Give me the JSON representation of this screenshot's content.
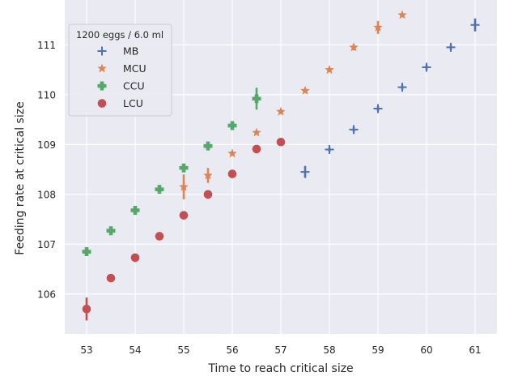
{
  "chart_data": {
    "type": "scatter",
    "title": "",
    "xlabel": "Time to reach critical size",
    "ylabel": "Feeding rate at critical size",
    "xlim": [
      52.55,
      61.45
    ],
    "ylim": [
      105.2,
      111.9
    ],
    "xticks": [
      53,
      54,
      55,
      56,
      57,
      58,
      59,
      60,
      61
    ],
    "yticks": [
      106,
      107,
      108,
      109,
      110,
      111
    ],
    "grid": true,
    "legend_title": "1200 eggs / 6.0 ml",
    "legend_position": "top-left",
    "series": [
      {
        "name": "MB",
        "marker": "plus",
        "color": "#4c72b0",
        "points": [
          {
            "x": 57.5,
            "y": 108.45,
            "err": 0.12
          },
          {
            "x": 58.0,
            "y": 108.9,
            "err": 0.05
          },
          {
            "x": 58.5,
            "y": 109.3,
            "err": 0.05
          },
          {
            "x": 59.0,
            "y": 109.72,
            "err": 0.05
          },
          {
            "x": 59.5,
            "y": 110.15,
            "err": 0.05
          },
          {
            "x": 60.0,
            "y": 110.55,
            "err": 0.05
          },
          {
            "x": 60.5,
            "y": 110.95,
            "err": 0.05
          },
          {
            "x": 61.0,
            "y": 111.4,
            "err": 0.13
          }
        ]
      },
      {
        "name": "MCU",
        "marker": "star",
        "color": "#dd8452",
        "points": [
          {
            "x": 55.0,
            "y": 108.15,
            "err": 0.25
          },
          {
            "x": 55.5,
            "y": 108.38,
            "err": 0.15
          },
          {
            "x": 56.0,
            "y": 108.82,
            "err": 0.04
          },
          {
            "x": 56.5,
            "y": 109.24,
            "err": 0.04
          },
          {
            "x": 57.0,
            "y": 109.66,
            "err": 0.04
          },
          {
            "x": 57.5,
            "y": 110.08,
            "err": 0.04
          },
          {
            "x": 58.0,
            "y": 110.5,
            "err": 0.04
          },
          {
            "x": 58.5,
            "y": 110.95,
            "err": 0.06
          },
          {
            "x": 59.0,
            "y": 111.35,
            "err": 0.13
          },
          {
            "x": 59.5,
            "y": 111.6,
            "err": 0.04
          }
        ]
      },
      {
        "name": "CCU",
        "marker": "plus-thick",
        "color": "#55a868",
        "points": [
          {
            "x": 53.0,
            "y": 106.85,
            "err": 0.05
          },
          {
            "x": 53.5,
            "y": 107.27,
            "err": 0.04
          },
          {
            "x": 54.0,
            "y": 107.68,
            "err": 0.04
          },
          {
            "x": 54.5,
            "y": 108.1,
            "err": 0.04
          },
          {
            "x": 55.0,
            "y": 108.53,
            "err": 0.04
          },
          {
            "x": 55.5,
            "y": 108.97,
            "err": 0.04
          },
          {
            "x": 56.0,
            "y": 109.38,
            "err": 0.04
          },
          {
            "x": 56.5,
            "y": 109.92,
            "err": 0.22
          }
        ]
      },
      {
        "name": "LCU",
        "marker": "circle",
        "color": "#c44e52",
        "points": [
          {
            "x": 53.0,
            "y": 105.7,
            "err": 0.23
          },
          {
            "x": 53.5,
            "y": 106.32,
            "err": 0.04
          },
          {
            "x": 54.0,
            "y": 106.73,
            "err": 0.03
          },
          {
            "x": 54.5,
            "y": 107.16,
            "err": 0.03
          },
          {
            "x": 55.0,
            "y": 107.58,
            "err": 0.03
          },
          {
            "x": 55.5,
            "y": 108.0,
            "err": 0.03
          },
          {
            "x": 56.0,
            "y": 108.41,
            "err": 0.03
          },
          {
            "x": 56.5,
            "y": 108.91,
            "err": 0.03
          },
          {
            "x": 57.0,
            "y": 109.05,
            "err": 0.03
          }
        ]
      }
    ]
  }
}
